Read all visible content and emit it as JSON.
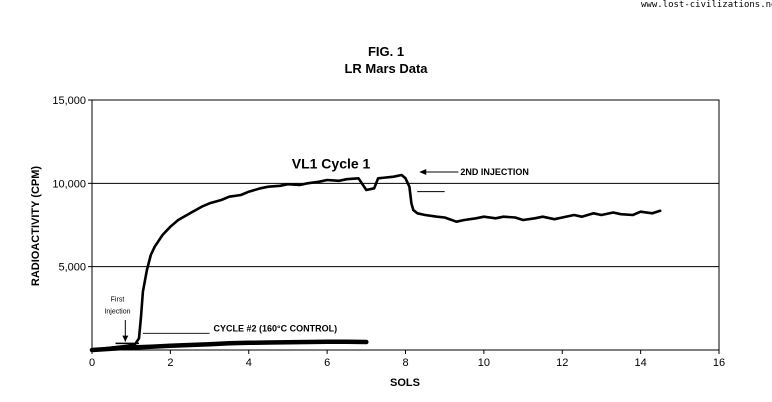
{
  "watermark": "www.lost-civilizations.net",
  "chart_data": {
    "type": "line",
    "title": "FIG. 1",
    "subtitle": "LR Mars Data",
    "xlabel": "SOLS",
    "ylabel": "RADIOACTIVITY (CPM)",
    "xlim": [
      0,
      16
    ],
    "ylim": [
      0,
      15000
    ],
    "x_ticks": [
      0,
      2,
      4,
      6,
      8,
      10,
      12,
      14,
      16
    ],
    "x_tick_labels": [
      "0",
      "2",
      "4",
      "6",
      "8",
      "10",
      "12",
      "14",
      "16"
    ],
    "y_ticks": [
      5000,
      10000,
      15000
    ],
    "y_tick_labels": [
      "5,000",
      "10,000",
      "15,000"
    ],
    "grid": "horizontal",
    "series": [
      {
        "name": "VL1 Cycle 1",
        "x": [
          0.0,
          0.5,
          0.9,
          1.1,
          1.2,
          1.25,
          1.3,
          1.4,
          1.5,
          1.6,
          1.8,
          2.0,
          2.2,
          2.5,
          2.8,
          3.0,
          3.3,
          3.5,
          3.8,
          4.0,
          4.3,
          4.5,
          4.8,
          5.0,
          5.3,
          5.5,
          5.8,
          6.0,
          6.3,
          6.5,
          6.8,
          7.0,
          7.2,
          7.3,
          7.5,
          7.7,
          7.9,
          8.0,
          8.1,
          8.15,
          8.2,
          8.3,
          8.5,
          8.8,
          9.0,
          9.3,
          9.5,
          9.8,
          10.0,
          10.3,
          10.5,
          10.8,
          11.0,
          11.3,
          11.5,
          11.8,
          12.0,
          12.3,
          12.5,
          12.8,
          13.0,
          13.3,
          13.5,
          13.8,
          14.0,
          14.3,
          14.5
        ],
        "values": [
          0,
          150,
          250,
          350,
          700,
          2000,
          3500,
          4800,
          5700,
          6200,
          6900,
          7400,
          7800,
          8200,
          8600,
          8800,
          9000,
          9200,
          9300,
          9500,
          9700,
          9800,
          9850,
          9950,
          9900,
          10000,
          10100,
          10200,
          10150,
          10250,
          10300,
          9600,
          9700,
          10300,
          10350,
          10400,
          10500,
          10300,
          9800,
          8800,
          8400,
          8200,
          8100,
          8000,
          7950,
          7700,
          7800,
          7900,
          8000,
          7900,
          8000,
          7950,
          7800,
          7900,
          8000,
          7850,
          7950,
          8100,
          8000,
          8200,
          8100,
          8250,
          8150,
          8100,
          8300,
          8200,
          8350
        ]
      },
      {
        "name": "CYCLE #2 (160°C CONTROL)",
        "x": [
          0.0,
          0.5,
          1.0,
          1.5,
          2.0,
          2.5,
          3.0,
          3.5,
          4.0,
          4.5,
          5.0,
          5.5,
          6.0,
          6.5,
          7.0
        ],
        "values": [
          0,
          80,
          150,
          200,
          250,
          300,
          350,
          400,
          430,
          450,
          470,
          480,
          490,
          490,
          480
        ]
      }
    ],
    "annotations": [
      {
        "text": "VL1 Cycle 1",
        "x": 6.1,
        "y": 10900
      },
      {
        "text": "2ND INJECTION",
        "x": 9.4,
        "y": 10500
      },
      {
        "text": "First",
        "x": 0.65,
        "y": 2900
      },
      {
        "text": "Injection",
        "x": 0.65,
        "y": 2200
      },
      {
        "text": "CYCLE #2 (160°C CONTROL)",
        "x": 3.1,
        "y": 1100
      }
    ]
  }
}
